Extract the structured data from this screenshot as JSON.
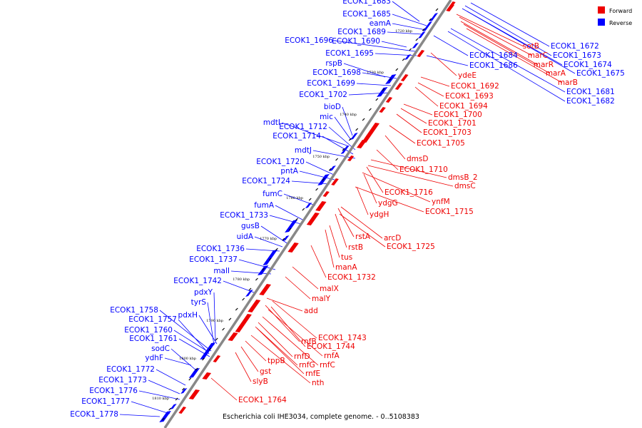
{
  "caption": "Escherichia coli IHE3034, complete genome. - 0..5108383",
  "legend": [
    {
      "label": "Forward",
      "color": "#ee0000"
    },
    {
      "label": "Reverse",
      "color": "#0000ff"
    }
  ],
  "colors": {
    "forward": "#ee0000",
    "reverse": "#0000ff",
    "backbone": "#888888"
  },
  "ticks": [
    "1720 kbp",
    "1730 kbp",
    "1740 kbp",
    "1750 kbp",
    "1760 kbp",
    "1770 kbp",
    "1780 kbp",
    "1790 kbp",
    "1800 kbp",
    "1810 kbp"
  ],
  "reverse_labels": [
    "ECOK1_1683",
    "ECOK1_1685",
    "eamA",
    "ECOK1_1689",
    "ECOK1_1696",
    "ECOK1_1690",
    "ECOK1_1695",
    "rspB",
    "ECOK1_1698",
    "ECOK1_1699",
    "ECOK1_1702",
    "bioD",
    "mic",
    "mdtI",
    "ECOK1_1712",
    "ECOK1_1714",
    "mdtJ",
    "ECOK1_1720",
    "pntA",
    "ECOK1_1724",
    "fumC",
    "fumA",
    "ECOK1_1733",
    "gusB",
    "uidA",
    "ECOK1_1736",
    "ECOK1_1737",
    "malI",
    "ECOK1_1742",
    "pdxY",
    "tyrS",
    "ECOK1_1758",
    "pdxH",
    "ECOK1_1757",
    "ECOK1_1760",
    "ECOK1_1761",
    "sodC",
    "ydhF",
    "ECOK1_1772",
    "ECOK1_1773",
    "ECOK1_1776",
    "ECOK1_1777",
    "ECOK1_1778"
  ],
  "reverse_right_labels": [
    "ECOK1_1684",
    "ECOK1_1686"
  ],
  "top_right_red_labels": [
    "sotB",
    "marC",
    "marR",
    "marA",
    "marB"
  ],
  "top_right_blue_labels": [
    "ECOK1_1672",
    "ECOK1_1673",
    "ECOK1_1674",
    "ECOK1_1675",
    "ECOK1_1681",
    "ECOK1_1682"
  ],
  "forward_labels": [
    "ydeE",
    "ECOK1_1692",
    "ECOK1_1693",
    "ECOK1_1694",
    "ECOK1_1700",
    "ECOK1_1701",
    "ECOK1_1703",
    "ECOK1_1705",
    "dmsD",
    "ECOK1_1710",
    "dmsB_2",
    "dmsC",
    "ECOK1_1716",
    "ynfM",
    "ydgG",
    "ECOK1_1715",
    "ydgH",
    "rstA",
    "arcD",
    "rstB",
    "ECOK1_1725",
    "tus",
    "manA",
    "ECOK1_1732",
    "malX",
    "malY",
    "add",
    "ECOK1_1743",
    "rnfB",
    "ECOK1_1744",
    "rnfA",
    "rnfD",
    "rnfC",
    "tppB",
    "rnfG",
    "rnfE",
    "gst",
    "nth",
    "slyB",
    "ECOK1_1764"
  ]
}
